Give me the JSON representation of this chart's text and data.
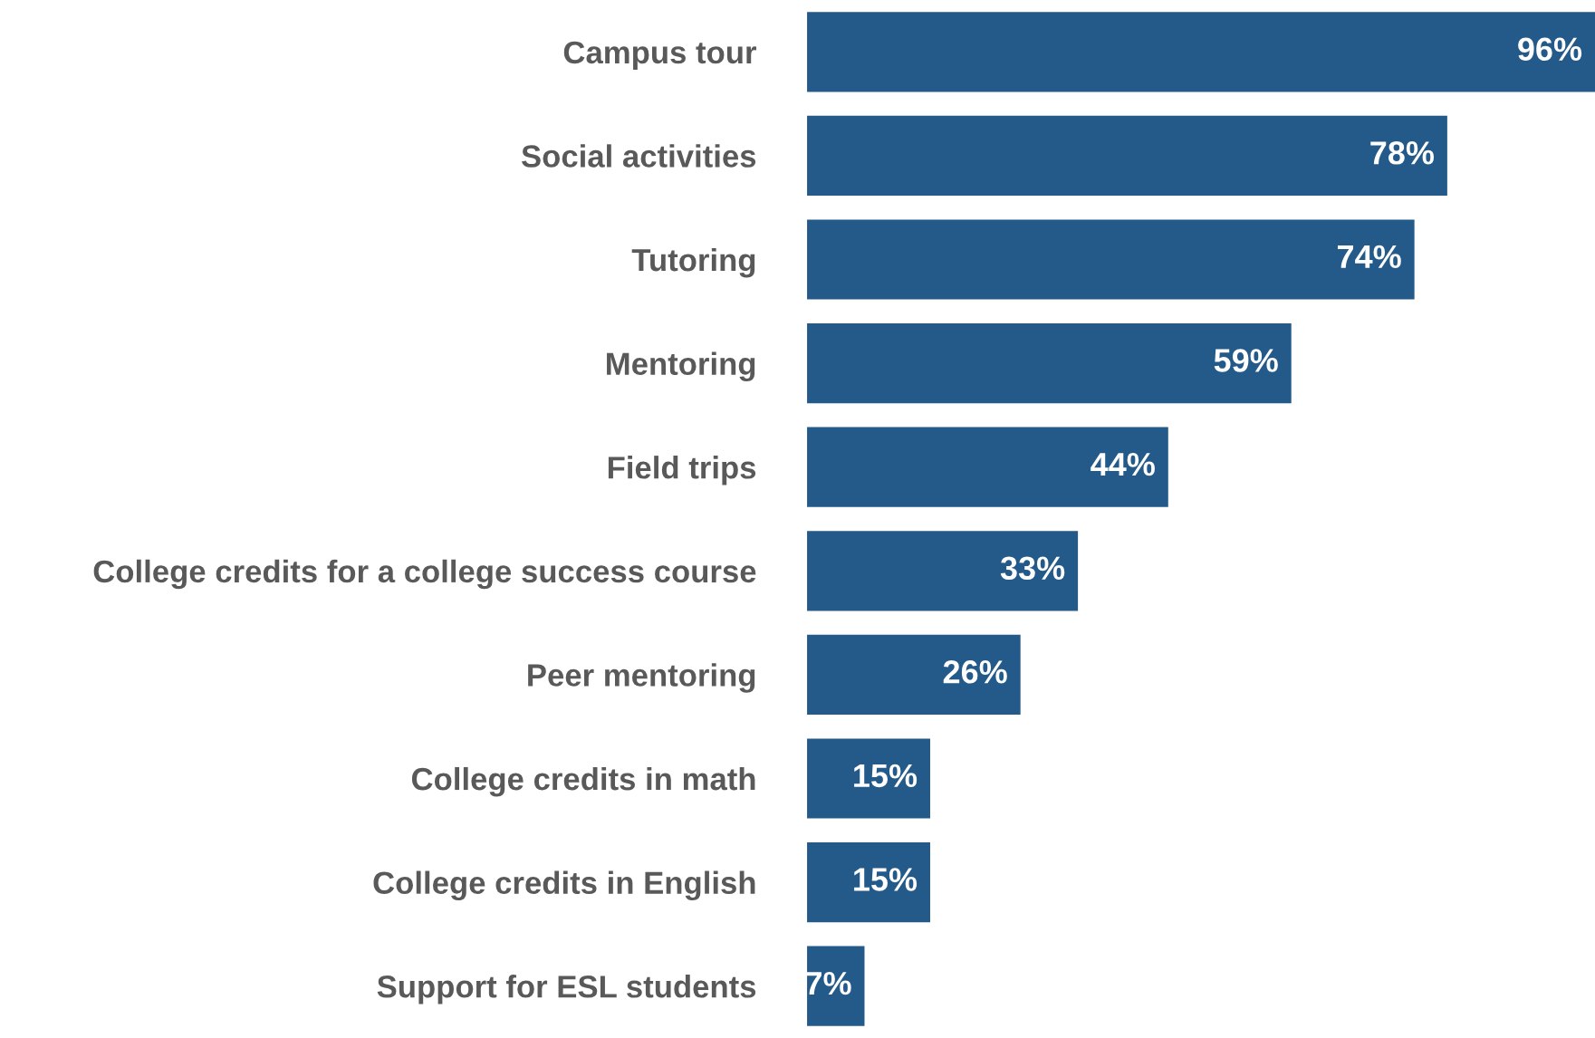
{
  "chart_data": {
    "type": "bar",
    "orientation": "horizontal",
    "categories": [
      "Campus tour",
      "Social activities",
      "Tutoring",
      "Mentoring",
      "Field trips",
      "College credits for a college success course",
      "Peer mentoring",
      "College credits in math",
      "College credits in English",
      "Support for ESL students"
    ],
    "values": [
      96,
      78,
      74,
      59,
      44,
      33,
      26,
      15,
      15,
      7
    ],
    "value_labels": [
      "96%",
      "78%",
      "74%",
      "59%",
      "44%",
      "33%",
      "26%",
      "15%",
      "15%",
      "7%"
    ],
    "color": "#245a8a",
    "grid": false,
    "legend": false,
    "tick_labels": "y"
  }
}
